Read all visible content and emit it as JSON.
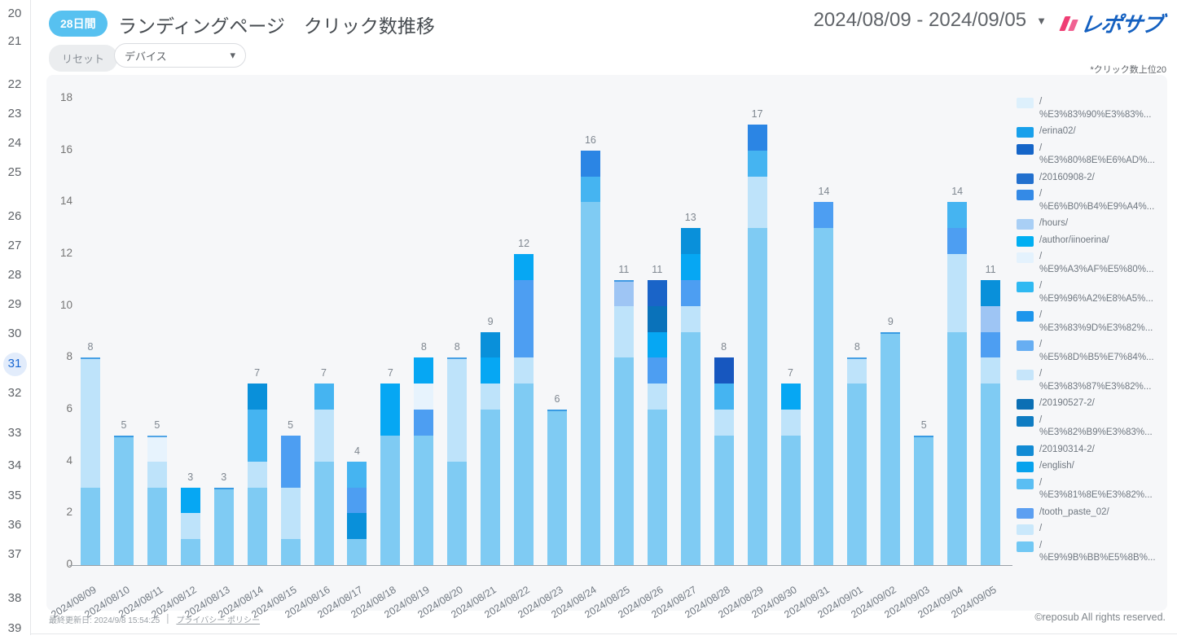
{
  "gutter": {
    "lines": [
      "20",
      "21",
      "22",
      "23",
      "24",
      "25",
      "26",
      "27",
      "28",
      "29",
      "30",
      "31",
      "32",
      "33",
      "34",
      "35",
      "36",
      "37",
      "38",
      "39"
    ],
    "active_line": "31"
  },
  "header": {
    "badge": "28日間",
    "title": "ランディングページ　クリック数推移",
    "date_range": "2024/08/09 - 2024/09/05",
    "logo_text": "レポサブ",
    "reset_label": "リセット",
    "device_label": "デバイス",
    "note": "*クリック数上位20"
  },
  "footer": {
    "last_updated": "最終更新日: 2024/9/8 15:54:25",
    "divider": "│",
    "privacy": "プライバシー ポリシー",
    "copyright": "©reposub All rights reserved."
  },
  "chart_data": {
    "type": "bar",
    "stacked": true,
    "title": "ランディングページ　クリック数推移",
    "period_days": 28,
    "ylim": [
      0,
      18
    ],
    "yticks": [
      0,
      2,
      4,
      6,
      8,
      10,
      12,
      14,
      16,
      18
    ],
    "grid": false,
    "legend_position": "right",
    "categories": [
      "2024/08/09",
      "2024/08/10",
      "2024/08/11",
      "2024/08/12",
      "2024/08/13",
      "2024/08/14",
      "2024/08/15",
      "2024/08/16",
      "2024/08/17",
      "2024/08/18",
      "2024/08/19",
      "2024/08/20",
      "2024/08/21",
      "2024/08/22",
      "2024/08/23",
      "2024/08/24",
      "2024/08/25",
      "2024/08/26",
      "2024/08/27",
      "2024/08/28",
      "2024/08/29",
      "2024/08/30",
      "2024/08/31",
      "2024/09/01",
      "2024/09/02",
      "2024/09/03",
      "2024/09/04",
      "2024/09/05"
    ],
    "totals": [
      8,
      5,
      5,
      3,
      3,
      7,
      5,
      7,
      4,
      7,
      8,
      8,
      9,
      12,
      6,
      16,
      11,
      11,
      13,
      8,
      17,
      7,
      14,
      8,
      9,
      5,
      14,
      11
    ],
    "colors": {
      "sky": "#7fcbf3",
      "pale": "#bee3fa",
      "verypale": "#e7f3fd",
      "cyan": "#45b4f1",
      "brightcyan": "#06a7f3",
      "brightblue": "#0990da",
      "cornflower": "#4d9ef2",
      "lightcornflower": "#9ec5f4",
      "azure": "#2b85e4",
      "royal": "#1a64c8",
      "darkroyal": "#1757bf",
      "darkteal": "#0a72ba"
    },
    "bars": [
      {
        "date": "2024/08/09",
        "total": 8,
        "segments": [
          [
            "sky",
            3
          ],
          [
            "pale",
            5
          ]
        ]
      },
      {
        "date": "2024/08/10",
        "total": 5,
        "segments": [
          [
            "sky",
            5
          ]
        ]
      },
      {
        "date": "2024/08/11",
        "total": 5,
        "segments": [
          [
            "sky",
            3
          ],
          [
            "pale",
            1
          ],
          [
            "verypale",
            1
          ]
        ]
      },
      {
        "date": "2024/08/12",
        "total": 3,
        "segments": [
          [
            "sky",
            1
          ],
          [
            "pale",
            1
          ],
          [
            "brightcyan",
            1
          ]
        ]
      },
      {
        "date": "2024/08/13",
        "total": 3,
        "segments": [
          [
            "sky",
            3
          ]
        ]
      },
      {
        "date": "2024/08/14",
        "total": 7,
        "segments": [
          [
            "sky",
            3
          ],
          [
            "pale",
            1
          ],
          [
            "cyan",
            2
          ],
          [
            "brightblue",
            1
          ]
        ]
      },
      {
        "date": "2024/08/15",
        "total": 5,
        "segments": [
          [
            "sky",
            1
          ],
          [
            "pale",
            2
          ],
          [
            "cornflower",
            2
          ]
        ]
      },
      {
        "date": "2024/08/16",
        "total": 7,
        "segments": [
          [
            "sky",
            4
          ],
          [
            "pale",
            2
          ],
          [
            "cyan",
            1
          ]
        ]
      },
      {
        "date": "2024/08/17",
        "total": 4,
        "segments": [
          [
            "sky",
            1
          ],
          [
            "brightblue",
            1
          ],
          [
            "cornflower",
            1
          ],
          [
            "cyan",
            1
          ]
        ]
      },
      {
        "date": "2024/08/18",
        "total": 7,
        "segments": [
          [
            "sky",
            5
          ],
          [
            "brightcyan",
            2
          ]
        ]
      },
      {
        "date": "2024/08/19",
        "total": 8,
        "segments": [
          [
            "sky",
            5
          ],
          [
            "cornflower",
            1
          ],
          [
            "verypale",
            1
          ],
          [
            "brightcyan",
            1
          ]
        ]
      },
      {
        "date": "2024/08/20",
        "total": 8,
        "segments": [
          [
            "sky",
            4
          ],
          [
            "pale",
            4
          ]
        ]
      },
      {
        "date": "2024/08/21",
        "total": 9,
        "segments": [
          [
            "sky",
            6
          ],
          [
            "pale",
            1
          ],
          [
            "brightcyan",
            1
          ],
          [
            "brightblue",
            1
          ]
        ]
      },
      {
        "date": "2024/08/22",
        "total": 12,
        "segments": [
          [
            "sky",
            7
          ],
          [
            "pale",
            1
          ],
          [
            "cornflower",
            3
          ],
          [
            "brightcyan",
            1
          ]
        ]
      },
      {
        "date": "2024/08/23",
        "total": 6,
        "segments": [
          [
            "sky",
            6
          ]
        ]
      },
      {
        "date": "2024/08/24",
        "total": 16,
        "segments": [
          [
            "sky",
            14
          ],
          [
            "cyan",
            1
          ],
          [
            "azure",
            1
          ]
        ]
      },
      {
        "date": "2024/08/25",
        "total": 11,
        "segments": [
          [
            "sky",
            8
          ],
          [
            "pale",
            2
          ],
          [
            "lightcornflower",
            1
          ]
        ]
      },
      {
        "date": "2024/08/26",
        "total": 11,
        "segments": [
          [
            "sky",
            6
          ],
          [
            "pale",
            1
          ],
          [
            "cornflower",
            1
          ],
          [
            "brightcyan",
            1
          ],
          [
            "darkteal",
            1
          ],
          [
            "royal",
            1
          ]
        ]
      },
      {
        "date": "2024/08/27",
        "total": 13,
        "segments": [
          [
            "sky",
            9
          ],
          [
            "pale",
            1
          ],
          [
            "cornflower",
            1
          ],
          [
            "brightcyan",
            1
          ],
          [
            "brightblue",
            1
          ]
        ]
      },
      {
        "date": "2024/08/28",
        "total": 8,
        "segments": [
          [
            "sky",
            5
          ],
          [
            "pale",
            1
          ],
          [
            "cyan",
            1
          ],
          [
            "darkroyal",
            1
          ]
        ]
      },
      {
        "date": "2024/08/29",
        "total": 17,
        "segments": [
          [
            "sky",
            13
          ],
          [
            "pale",
            2
          ],
          [
            "cyan",
            1
          ],
          [
            "azure",
            1
          ]
        ]
      },
      {
        "date": "2024/08/30",
        "total": 7,
        "segments": [
          [
            "sky",
            5
          ],
          [
            "pale",
            1
          ],
          [
            "brightcyan",
            1
          ]
        ]
      },
      {
        "date": "2024/08/31",
        "total": 14,
        "segments": [
          [
            "sky",
            13
          ],
          [
            "cornflower",
            1
          ]
        ]
      },
      {
        "date": "2024/09/01",
        "total": 8,
        "segments": [
          [
            "sky",
            7
          ],
          [
            "pale",
            1
          ]
        ]
      },
      {
        "date": "2024/09/02",
        "total": 9,
        "segments": [
          [
            "sky",
            9
          ]
        ]
      },
      {
        "date": "2024/09/03",
        "total": 5,
        "segments": [
          [
            "sky",
            5
          ]
        ]
      },
      {
        "date": "2024/09/04",
        "total": 14,
        "segments": [
          [
            "sky",
            9
          ],
          [
            "pale",
            3
          ],
          [
            "cornflower",
            1
          ],
          [
            "cyan",
            1
          ]
        ]
      },
      {
        "date": "2024/09/05",
        "total": 11,
        "segments": [
          [
            "sky",
            7
          ],
          [
            "pale",
            1
          ],
          [
            "cornflower",
            1
          ],
          [
            "lightcornflower",
            1
          ],
          [
            "brightblue",
            1
          ]
        ]
      }
    ],
    "legend": [
      {
        "color": "#ddf0fc",
        "label": "/\n%E3%83%90%E3%83%..."
      },
      {
        "color": "#18a0eb",
        "label": "/erina02/"
      },
      {
        "color": "#1565c8",
        "label": "/\n%E3%80%8E%E6%AD%..."
      },
      {
        "color": "#2270ce",
        "label": "/20160908-2/"
      },
      {
        "color": "#348ae6",
        "label": "/\n%E6%B0%B4%E9%A4%..."
      },
      {
        "color": "#a9cff5",
        "label": "/hours/"
      },
      {
        "color": "#01aff2",
        "label": "/author/iinoerina/"
      },
      {
        "color": "#e4f2fd",
        "label": "/\n%E9%A3%AF%E5%80%..."
      },
      {
        "color": "#2fb9f2",
        "label": "/\n%E9%96%A2%E8%A5%..."
      },
      {
        "color": "#1e96ec",
        "label": "/\n%E3%83%9D%E3%82%..."
      },
      {
        "color": "#67aef2",
        "label": "/\n%E5%8D%B5%E7%84%..."
      },
      {
        "color": "#c6e5fa",
        "label": "/\n%E3%83%87%E3%82%..."
      },
      {
        "color": "#0b6fb4",
        "label": "/20190527-2/"
      },
      {
        "color": "#0f7cc2",
        "label": "/\n%E3%82%B9%E3%83%..."
      },
      {
        "color": "#128bd4",
        "label": "/20190314-2/"
      },
      {
        "color": "#07a2ed",
        "label": "/english/"
      },
      {
        "color": "#5abef3",
        "label": "/\n%E3%81%8E%E3%82%..."
      },
      {
        "color": "#5c9ff1",
        "label": "/tooth_paste_02/"
      },
      {
        "color": "#cae8fb",
        "label": "/"
      },
      {
        "color": "#72c8f4",
        "label": "/\n%E9%9B%BB%E5%8B%..."
      }
    ]
  }
}
